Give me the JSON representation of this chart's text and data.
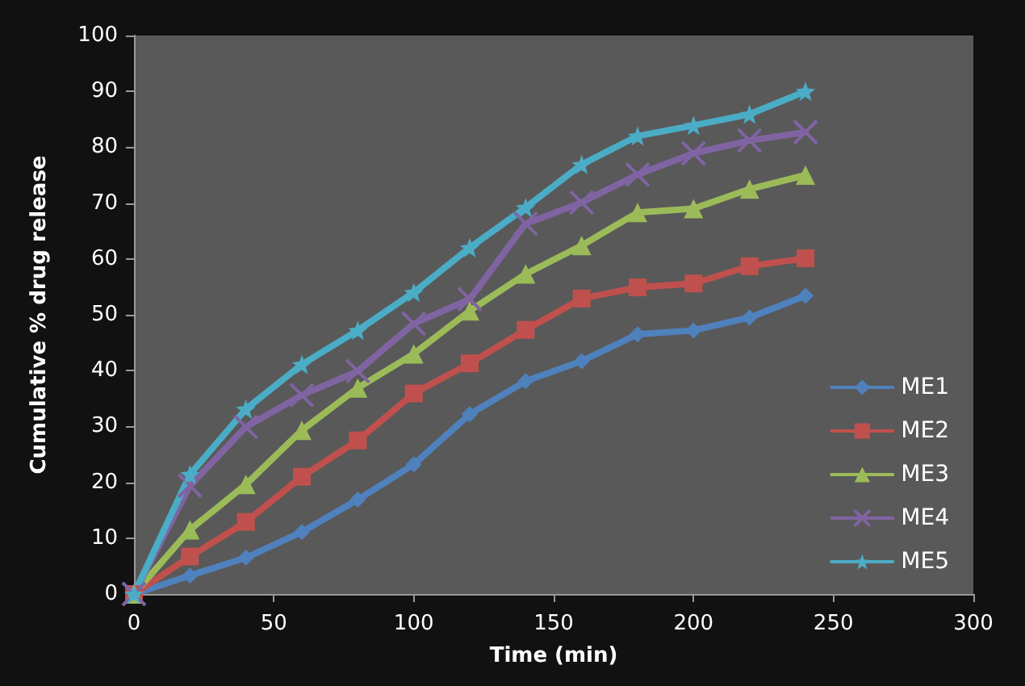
{
  "chart_data": {
    "type": "line",
    "xlabel": "Time (min)",
    "ylabel": "Cumulative % drug release",
    "x": [
      0,
      20,
      40,
      60,
      80,
      100,
      120,
      140,
      160,
      180,
      200,
      220,
      240
    ],
    "series": [
      {
        "name": "ME1",
        "color": "#4f81bd",
        "marker": "diamond",
        "values": [
          0,
          3.3,
          6.5,
          11.1,
          16.9,
          23.2,
          32.2,
          38.1,
          41.7,
          46.5,
          47.2,
          49.5,
          53.4
        ]
      },
      {
        "name": "ME2",
        "color": "#c0504d",
        "marker": "square",
        "values": [
          0,
          6.7,
          12.9,
          21.0,
          27.5,
          35.9,
          41.3,
          47.3,
          52.9,
          54.9,
          55.6,
          58.7,
          60.1
        ]
      },
      {
        "name": "ME3",
        "color": "#9bbb59",
        "marker": "triangle",
        "values": [
          0,
          11.5,
          19.6,
          29.3,
          36.9,
          43.0,
          50.7,
          57.3,
          62.4,
          68.3,
          69.0,
          72.5,
          75.0
        ]
      },
      {
        "name": "ME4",
        "color": "#8064a2",
        "marker": "cross",
        "values": [
          0,
          19.4,
          29.9,
          35.6,
          39.9,
          48.4,
          52.8,
          66.3,
          70.1,
          75.1,
          78.9,
          81.2,
          82.7
        ]
      },
      {
        "name": "ME5",
        "color": "#4bacc6",
        "marker": "star",
        "values": [
          0,
          21.4,
          33.1,
          41.1,
          47.2,
          54.0,
          62.0,
          69.2,
          76.9,
          82.0,
          83.9,
          85.9,
          90.0
        ]
      }
    ],
    "xlim": [
      0,
      300
    ],
    "xticks": [
      0,
      50,
      100,
      150,
      200,
      250,
      300
    ],
    "ylim": [
      0,
      100
    ],
    "yticks": [
      0,
      10,
      20,
      30,
      40,
      50,
      60,
      70,
      80,
      90,
      100
    ],
    "grid": false,
    "legend": "right",
    "line_style": "solid"
  }
}
